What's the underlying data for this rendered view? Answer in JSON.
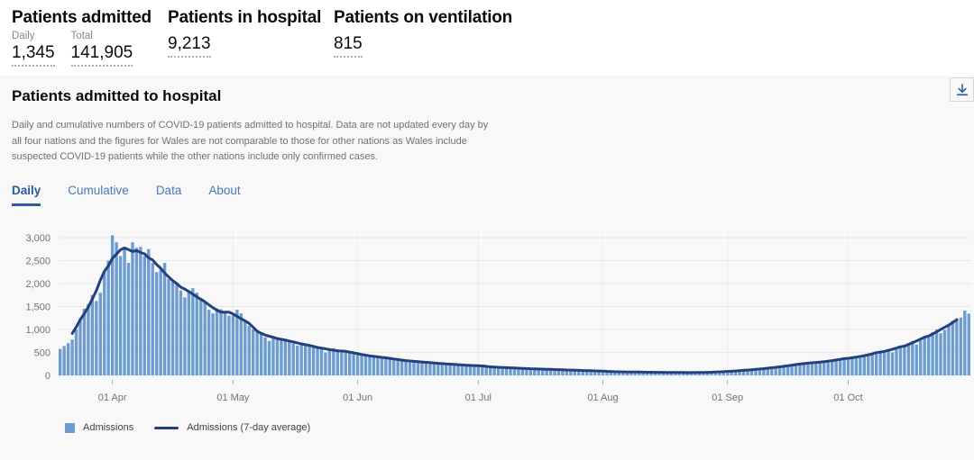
{
  "header": {
    "stats": [
      {
        "title": "Patients admitted",
        "items": [
          {
            "label": "Daily",
            "value": "1,345"
          },
          {
            "label": "Total",
            "value": "141,905"
          }
        ]
      },
      {
        "title": "Patients in hospital",
        "items": [
          {
            "label": "",
            "value": "9,213"
          }
        ]
      },
      {
        "title": "Patients on ventilation",
        "items": [
          {
            "label": "",
            "value": "815"
          }
        ]
      }
    ]
  },
  "card": {
    "title": "Patients admitted to hospital",
    "description": "Daily and cumulative numbers of COVID-19 patients admitted to hospital. Data are not updated every day by all four nations and the figures for Wales are not comparable to those for other nations as Wales include suspected COVID-19 patients while the other nations include only confirmed cases.",
    "download_icon": "download-icon",
    "tabs": [
      {
        "label": "Daily",
        "active": true
      },
      {
        "label": "Cumulative",
        "active": false
      },
      {
        "label": "Data",
        "active": false
      },
      {
        "label": "About",
        "active": false
      }
    ]
  },
  "chart_data": {
    "type": "bar",
    "title": "Patients admitted to hospital (daily)",
    "xlabel": "",
    "ylabel": "",
    "ylim": [
      0,
      3000
    ],
    "grid": true,
    "legend_position": "bottom",
    "start_date": "2020-03-19",
    "y_ticks": [
      0,
      500,
      1000,
      1500,
      2000,
      2500,
      3000
    ],
    "y_tick_labels": [
      "0",
      "500",
      "1,000",
      "1,500",
      "2,000",
      "2,500",
      "3,000"
    ],
    "x_ticks": [
      {
        "index": 13,
        "label": "01 Apr"
      },
      {
        "index": 43,
        "label": "01 May"
      },
      {
        "index": 74,
        "label": "01 Jun"
      },
      {
        "index": 104,
        "label": "01 Jul"
      },
      {
        "index": 135,
        "label": "01 Aug"
      },
      {
        "index": 166,
        "label": "01 Sep"
      },
      {
        "index": 196,
        "label": "01 Oct"
      }
    ],
    "series": [
      {
        "name": "Admissions",
        "type": "bar",
        "color": "#6d9cd1",
        "values": [
          575,
          640,
          700,
          780,
          1000,
          1250,
          1450,
          1550,
          1750,
          1620,
          1800,
          2250,
          2500,
          3050,
          2900,
          2600,
          2750,
          2450,
          2900,
          2780,
          2800,
          2600,
          2750,
          2450,
          2250,
          2300,
          2450,
          2100,
          2050,
          2000,
          1850,
          1700,
          1850,
          1900,
          1800,
          1680,
          1600,
          1430,
          1350,
          1460,
          1440,
          1360,
          1300,
          1300,
          1430,
          1350,
          1180,
          1080,
          1000,
          960,
          940,
          830,
          750,
          845,
          830,
          815,
          800,
          745,
          700,
          650,
          705,
          690,
          670,
          650,
          610,
          590,
          500,
          545,
          590,
          565,
          535,
          515,
          495,
          480,
          490,
          470,
          440,
          415,
          400,
          390,
          370,
          415,
          400,
          355,
          340,
          320,
          300,
          285,
          330,
          315,
          300,
          285,
          270,
          255,
          240,
          280,
          265,
          250,
          235,
          225,
          215,
          205,
          235,
          225,
          215,
          205,
          195,
          185,
          175,
          170,
          160,
          180,
          172,
          164,
          156,
          148,
          142,
          136,
          152,
          146,
          140,
          134,
          128,
          122,
          116,
          130,
          124,
          118,
          112,
          107,
          102,
          98,
          108,
          103,
          98,
          93,
          88,
          84,
          80,
          77,
          74,
          72,
          78,
          75,
          72,
          70,
          68,
          66,
          64,
          70,
          68,
          66,
          64,
          62,
          61,
          60,
          64,
          62,
          61,
          60,
          64,
          66,
          68,
          72,
          76,
          80,
          85,
          90,
          96,
          102,
          108,
          115,
          122,
          130,
          138,
          147,
          156,
          165,
          175,
          185,
          196,
          208,
          222,
          236,
          250,
          262,
          272,
          278,
          282,
          286,
          292,
          302,
          318,
          335,
          352,
          372,
          370,
          390,
          410,
          380,
          420,
          445,
          470,
          495,
          520,
          545,
          575,
          500,
          565,
          615,
          660,
          705,
          750,
          672,
          760,
          820,
          880,
          940,
          1000,
          920,
          990,
          1080,
          1190,
          1215,
          1260,
          1410,
          1345
        ]
      },
      {
        "name": "Admissions (7-day average)",
        "type": "line",
        "color": "#24407c",
        "derived": "centered 7-day moving average of Admissions",
        "window": 7
      }
    ]
  }
}
